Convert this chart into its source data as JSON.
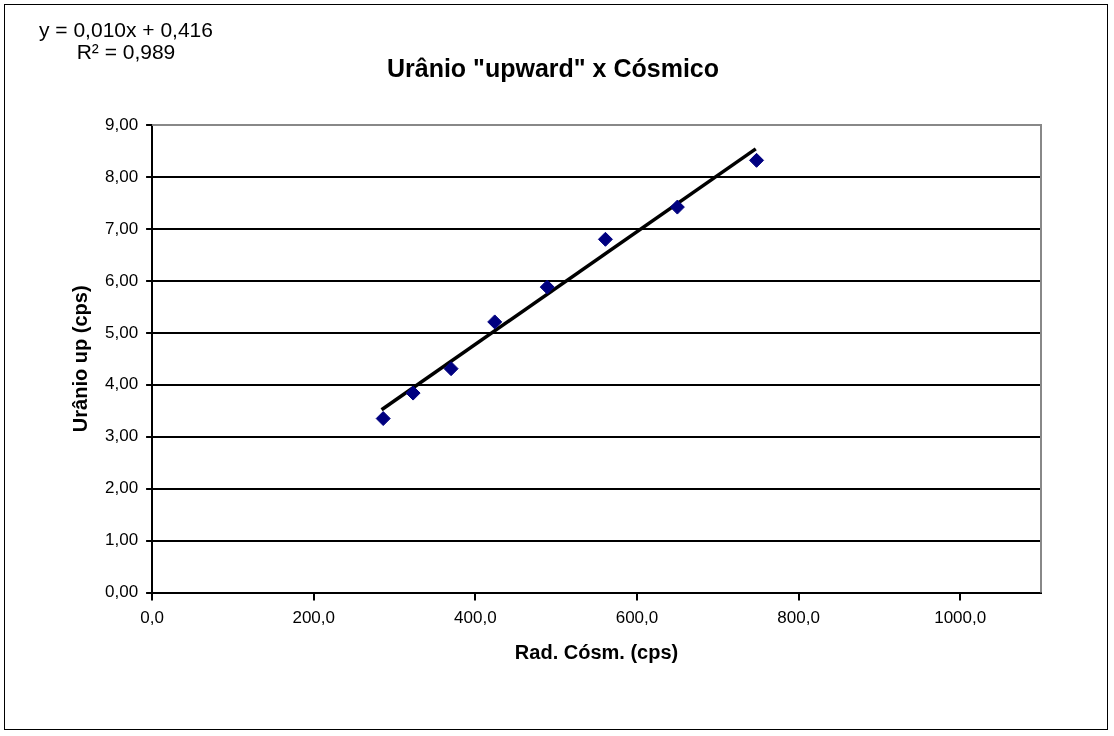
{
  "chart_data": {
    "type": "scatter",
    "title": "Urânio \"upward\" x Cósmico",
    "xlabel": "Rad. Cósm. (cps)",
    "ylabel": "Urânio up (cps)",
    "annotations": [
      "y = 0,010x + 0,416",
      "R² = 0,989"
    ],
    "series": [
      {
        "color": "#000080",
        "marker": "diamond",
        "x": [
          286,
          323,
          370,
          424,
          489,
          561,
          650,
          748
        ],
        "values": [
          3.35,
          3.84,
          4.31,
          5.21,
          5.88,
          6.8,
          7.42,
          8.32
        ]
      },
      {
        "type": "line",
        "color": "#000000",
        "marker": "none",
        "line_style": "solid",
        "x": [
          284,
          747
        ],
        "values": [
          3.52,
          8.54
        ]
      }
    ],
    "xlim": [
      0,
      1100
    ],
    "xticks": [
      {
        "value": 0,
        "label": "0,0"
      },
      {
        "value": 200,
        "label": "200,0"
      },
      {
        "value": 400,
        "label": "400,0"
      },
      {
        "value": 600,
        "label": "600,0"
      },
      {
        "value": 800,
        "label": "800,0"
      },
      {
        "value": 1000,
        "label": "1000,0"
      }
    ],
    "ylim": [
      0,
      9
    ],
    "yticks": [
      {
        "value": 0,
        "label": "0,00"
      },
      {
        "value": 1,
        "label": "1,00"
      },
      {
        "value": 2,
        "label": "2,00"
      },
      {
        "value": 3,
        "label": "3,00"
      },
      {
        "value": 4,
        "label": "4,00"
      },
      {
        "value": 5,
        "label": "5,00"
      },
      {
        "value": 6,
        "label": "6,00"
      },
      {
        "value": 7,
        "label": "7,00"
      },
      {
        "value": 8,
        "label": "8,00"
      },
      {
        "value": 9,
        "label": "9,00"
      }
    ],
    "grid": "y",
    "legend": false
  }
}
